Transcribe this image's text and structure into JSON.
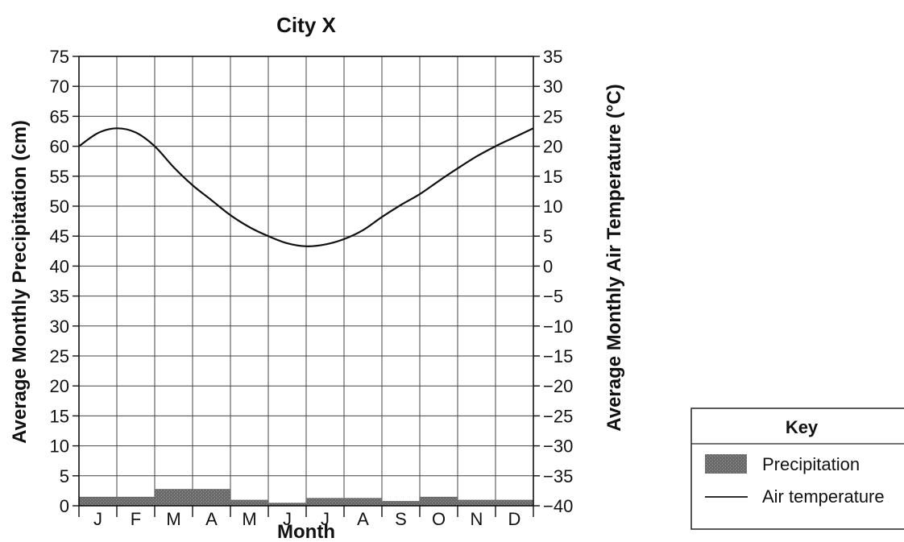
{
  "chart_data": {
    "type": "bar+line",
    "title": "City X",
    "xlabel": "Month",
    "categories": [
      "J",
      "F",
      "M",
      "A",
      "M",
      "J",
      "J",
      "A",
      "S",
      "O",
      "N",
      "D"
    ],
    "precipitation": {
      "axis_label": "Average Monthly Precipitation (cm)",
      "ylim": [
        0,
        75
      ],
      "ticks": [
        0,
        5,
        10,
        15,
        20,
        25,
        30,
        35,
        40,
        45,
        50,
        55,
        60,
        65,
        70,
        75
      ],
      "values": [
        1.5,
        1.5,
        2.8,
        2.8,
        1.0,
        0.5,
        1.3,
        1.3,
        0.8,
        1.5,
        1.0,
        1.0
      ],
      "color": "#555555"
    },
    "temperature": {
      "axis_label": "Average Monthly Air Temperature (°C)",
      "ylim": [
        -40,
        35
      ],
      "ticks": [
        35,
        30,
        25,
        20,
        15,
        10,
        5,
        0,
        -5,
        -10,
        -15,
        -20,
        -25,
        -30,
        -35,
        -40
      ],
      "x": [
        0,
        0.5,
        1,
        1.5,
        2,
        2.5,
        3,
        3.5,
        4,
        4.5,
        5,
        5.5,
        6,
        6.5,
        7,
        7.5,
        8,
        8.5,
        9,
        9.5,
        10,
        10.5,
        11,
        11.5,
        12
      ],
      "values": [
        20,
        22.2,
        23,
        22.3,
        20,
        16.5,
        13.5,
        11,
        8.5,
        6.5,
        5,
        3.8,
        3.3,
        3.6,
        4.5,
        6,
        8.2,
        10.2,
        12,
        14.2,
        16.3,
        18.3,
        20,
        21.5,
        23
      ],
      "color": "#111111"
    },
    "legend": {
      "title": "Key",
      "placement": "bottom-right",
      "items": [
        {
          "label": "Precipitation",
          "type": "bar"
        },
        {
          "label": "Air temperature",
          "type": "line"
        }
      ]
    },
    "grid": true
  }
}
